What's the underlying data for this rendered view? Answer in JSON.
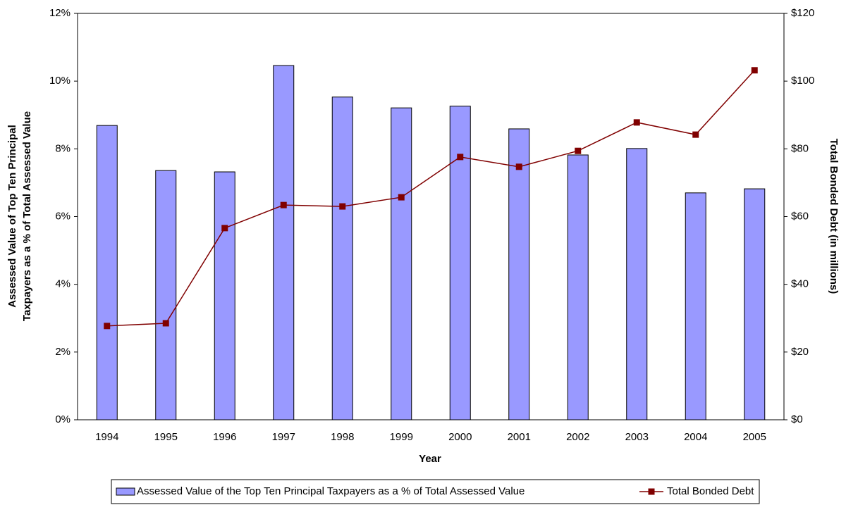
{
  "chart_data": {
    "type": "bar-line",
    "xlabel": "Year",
    "ylabel": [
      "Assessed Value of Top Ten Principal",
      "Taxpayers as a % of Total Assessed Value"
    ],
    "y2label": "Total Bonded Debt (in millions)",
    "categories": [
      "1994",
      "1995",
      "1996",
      "1997",
      "1998",
      "1999",
      "2000",
      "2001",
      "2002",
      "2003",
      "2004",
      "2005"
    ],
    "series": [
      {
        "name": "Assessed Value of the Top Ten Principal Taxpayers as a % of Total Assessed Value",
        "type": "bar",
        "axis": "y",
        "color": "#9999ff",
        "values": [
          8.69,
          7.36,
          7.32,
          10.46,
          9.53,
          9.21,
          9.26,
          8.59,
          7.82,
          8.01,
          6.7,
          6.82
        ]
      },
      {
        "name": "Total Bonded Debt",
        "type": "line",
        "axis": "y2",
        "color": "#800000",
        "values": [
          27.7,
          28.5,
          56.6,
          63.4,
          63.0,
          65.7,
          77.6,
          74.7,
          79.4,
          87.8,
          84.2,
          103.2
        ]
      }
    ],
    "ylim": [
      0,
      12
    ],
    "yticks": [
      {
        "value": 0,
        "label": "0%"
      },
      {
        "value": 2,
        "label": "2%"
      },
      {
        "value": 4,
        "label": "4%"
      },
      {
        "value": 6,
        "label": "6%"
      },
      {
        "value": 8,
        "label": "8%"
      },
      {
        "value": 10,
        "label": "10%"
      },
      {
        "value": 12,
        "label": "12%"
      }
    ],
    "y2lim": [
      0,
      120
    ],
    "y2ticks": [
      {
        "value": 0,
        "label": "$0"
      },
      {
        "value": 20,
        "label": "$20"
      },
      {
        "value": 40,
        "label": "$40"
      },
      {
        "value": 60,
        "label": "$60"
      },
      {
        "value": 80,
        "label": "$80"
      },
      {
        "value": 100,
        "label": "$100"
      },
      {
        "value": 120,
        "label": "$120"
      }
    ],
    "grid": false,
    "legend": "bottom"
  }
}
